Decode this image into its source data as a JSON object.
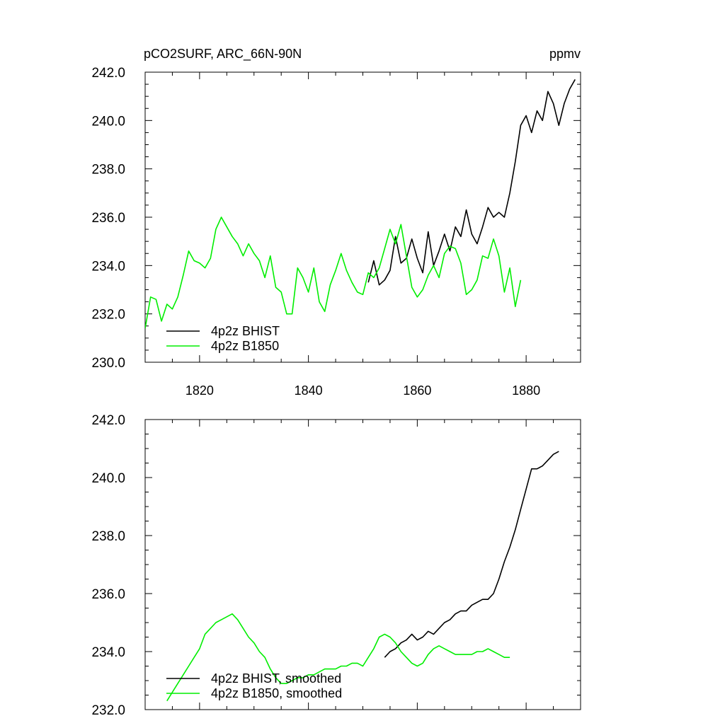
{
  "chart_data": [
    {
      "type": "line",
      "title": "pCO2SURF, ARC_66N-90N",
      "units": "ppmv",
      "xlim": [
        1810,
        1890
      ],
      "ylim": [
        230,
        242
      ],
      "x_ticks": [
        1820,
        1840,
        1860,
        1880
      ],
      "x_tick_labels": [
        "1820",
        "1840",
        "1860",
        "1880"
      ],
      "y_ticks": [
        230,
        232,
        234,
        236,
        238,
        240,
        242
      ],
      "y_tick_labels": [
        "230.0",
        "232.0",
        "234.0",
        "236.0",
        "238.0",
        "240.0",
        "242.0"
      ],
      "legend_position": "bottom-left",
      "series": [
        {
          "name": "4p2z BHIST",
          "color": "#000000",
          "x": [
            1851,
            1852,
            1853,
            1854,
            1855,
            1856,
            1857,
            1858,
            1859,
            1860,
            1861,
            1862,
            1863,
            1864,
            1865,
            1866,
            1867,
            1868,
            1869,
            1870,
            1871,
            1872,
            1873,
            1874,
            1875,
            1876,
            1877,
            1878,
            1879,
            1880,
            1881,
            1882,
            1883,
            1884,
            1885,
            1886,
            1887,
            1888,
            1889
          ],
          "values": [
            233.3,
            234.2,
            233.2,
            233.4,
            233.8,
            235.2,
            234.1,
            234.3,
            235.1,
            234.3,
            233.7,
            235.4,
            234.0,
            234.6,
            235.3,
            234.6,
            235.6,
            235.2,
            236.3,
            235.3,
            234.9,
            235.6,
            236.4,
            236.0,
            236.2,
            236.0,
            237.0,
            238.3,
            239.8,
            240.2,
            239.5,
            240.4,
            240.0,
            241.2,
            240.7,
            239.8,
            240.7,
            241.3,
            241.7
          ]
        },
        {
          "name": "4p2z B1850",
          "color": "#00ee00",
          "x": [
            1810,
            1811,
            1812,
            1813,
            1814,
            1815,
            1816,
            1817,
            1818,
            1819,
            1820,
            1821,
            1822,
            1823,
            1824,
            1825,
            1826,
            1827,
            1828,
            1829,
            1830,
            1831,
            1832,
            1833,
            1834,
            1835,
            1836,
            1837,
            1838,
            1839,
            1840,
            1841,
            1842,
            1843,
            1844,
            1845,
            1846,
            1847,
            1848,
            1849,
            1850,
            1851,
            1852,
            1853,
            1854,
            1855,
            1856,
            1857,
            1858,
            1859,
            1860,
            1861,
            1862,
            1863,
            1864,
            1865,
            1866,
            1867,
            1868,
            1869,
            1870,
            1871,
            1872,
            1873,
            1874,
            1875,
            1876,
            1877,
            1878,
            1879
          ],
          "values": [
            231.4,
            232.7,
            232.6,
            231.7,
            232.4,
            232.2,
            232.7,
            233.6,
            234.6,
            234.2,
            234.1,
            233.9,
            234.3,
            235.5,
            236.0,
            235.6,
            235.2,
            234.9,
            234.4,
            234.9,
            234.5,
            234.2,
            233.5,
            234.4,
            233.1,
            232.9,
            232.0,
            232.0,
            233.9,
            233.5,
            232.9,
            233.9,
            232.5,
            232.1,
            233.2,
            233.8,
            234.5,
            233.8,
            233.3,
            232.9,
            232.8,
            233.7,
            233.5,
            233.9,
            234.7,
            235.5,
            234.9,
            235.7,
            234.4,
            233.1,
            232.7,
            233.0,
            233.6,
            234.0,
            233.5,
            234.5,
            234.8,
            234.7,
            234.1,
            232.8,
            233.0,
            233.4,
            234.4,
            234.3,
            235.1,
            234.4,
            232.9,
            233.9,
            232.3,
            233.4
          ]
        }
      ]
    },
    {
      "type": "line",
      "title": "",
      "xlim": [
        1810,
        1890
      ],
      "ylim": [
        232,
        242
      ],
      "x_ticks": [
        1820,
        1840,
        1860,
        1880
      ],
      "y_ticks": [
        232,
        234,
        236,
        238,
        240,
        242
      ],
      "y_tick_labels": [
        "232.0",
        "234.0",
        "236.0",
        "238.0",
        "240.0",
        "242.0"
      ],
      "legend_position": "bottom-left",
      "series": [
        {
          "name": "4p2z BHIST, smoothed",
          "color": "#000000",
          "x": [
            1854,
            1855,
            1856,
            1857,
            1858,
            1859,
            1860,
            1861,
            1862,
            1863,
            1864,
            1865,
            1866,
            1867,
            1868,
            1869,
            1870,
            1871,
            1872,
            1873,
            1874,
            1875,
            1876,
            1877,
            1878,
            1879,
            1880,
            1881,
            1882,
            1883,
            1884,
            1885,
            1886
          ],
          "values": [
            233.8,
            234.0,
            234.1,
            234.3,
            234.4,
            234.6,
            234.4,
            234.5,
            234.7,
            234.6,
            234.8,
            235.0,
            235.1,
            235.3,
            235.4,
            235.4,
            235.6,
            235.7,
            235.8,
            235.8,
            236.0,
            236.5,
            237.1,
            237.6,
            238.2,
            238.9,
            239.6,
            240.3,
            240.3,
            240.4,
            240.6,
            240.8,
            240.9
          ]
        },
        {
          "name": "4p2z B1850, smoothed",
          "color": "#00ee00",
          "x": [
            1814,
            1815,
            1816,
            1817,
            1818,
            1819,
            1820,
            1821,
            1822,
            1823,
            1824,
            1825,
            1826,
            1827,
            1828,
            1829,
            1830,
            1831,
            1832,
            1833,
            1834,
            1835,
            1836,
            1837,
            1838,
            1839,
            1840,
            1841,
            1842,
            1843,
            1844,
            1845,
            1846,
            1847,
            1848,
            1849,
            1850,
            1851,
            1852,
            1853,
            1854,
            1855,
            1856,
            1857,
            1858,
            1859,
            1860,
            1861,
            1862,
            1863,
            1864,
            1865,
            1866,
            1867,
            1868,
            1869,
            1870,
            1871,
            1872,
            1873,
            1874,
            1875,
            1876,
            1877
          ],
          "values": [
            232.3,
            232.6,
            232.9,
            233.2,
            233.5,
            233.8,
            234.1,
            234.6,
            234.8,
            235.0,
            235.1,
            235.2,
            235.3,
            235.1,
            234.8,
            234.5,
            234.3,
            234.0,
            233.8,
            233.4,
            233.1,
            232.9,
            232.9,
            233.0,
            233.1,
            233.1,
            233.2,
            233.2,
            233.3,
            233.4,
            233.4,
            233.4,
            233.5,
            233.5,
            233.6,
            233.6,
            233.5,
            233.8,
            234.1,
            234.5,
            234.6,
            234.5,
            234.3,
            234.0,
            233.8,
            233.6,
            233.5,
            233.6,
            233.9,
            234.1,
            234.2,
            234.1,
            234.0,
            233.9,
            233.9,
            233.9,
            233.9,
            234.0,
            234.0,
            234.1,
            234.0,
            233.9,
            233.8,
            233.8
          ]
        }
      ]
    }
  ]
}
